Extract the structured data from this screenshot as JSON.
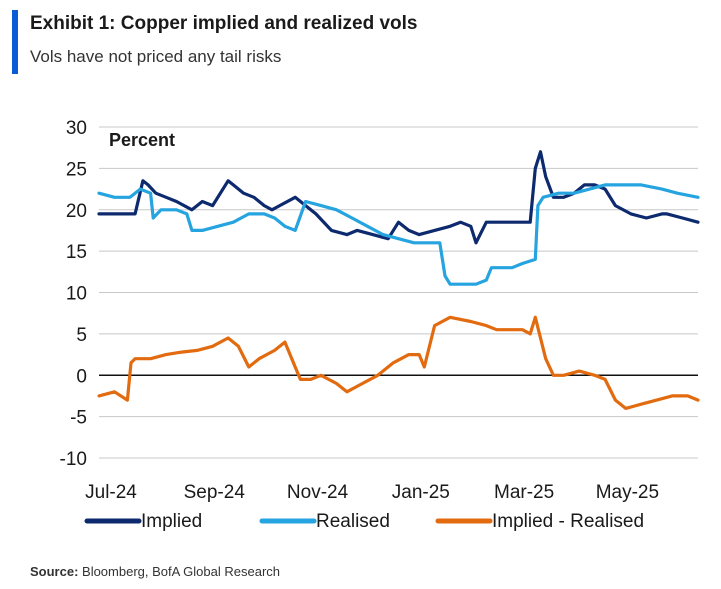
{
  "header": {
    "title": "Exhibit 1: Copper implied and realized vols",
    "subtitle": "Vols have not priced any tail risks",
    "accent_color": "#0a5bd8"
  },
  "source": {
    "label": "Source:",
    "text": " Bloomberg, BofA Global Research"
  },
  "chart_data": {
    "type": "line",
    "title": "Exhibit 1: Copper implied and realized vols",
    "ylabel": "Percent",
    "xlabel": "",
    "ylim": [
      -10,
      30
    ],
    "yticks": [
      -10,
      -5,
      0,
      5,
      10,
      15,
      20,
      25,
      30
    ],
    "ytick_labels": [
      "-10",
      "-5",
      "0",
      "5",
      "10",
      "15",
      "20",
      "25",
      "30"
    ],
    "xlim": [
      0,
      11.6
    ],
    "xticks": [
      {
        "pos": 0,
        "label": "Jul-24"
      },
      {
        "pos": 2,
        "label": "Sep-24"
      },
      {
        "pos": 4,
        "label": "Nov-24"
      },
      {
        "pos": 6,
        "label": "Jan-25"
      },
      {
        "pos": 8,
        "label": "Mar-25"
      },
      {
        "pos": 10,
        "label": "May-25"
      }
    ],
    "grid": true,
    "legend_position": "bottom",
    "series": [
      {
        "name": "Implied",
        "color": "#0d2a6e",
        "x": [
          0,
          0.4,
          0.7,
          0.85,
          0.95,
          1.1,
          1.3,
          1.5,
          1.8,
          2.0,
          2.2,
          2.5,
          2.6,
          2.8,
          3.0,
          3.2,
          3.35,
          3.5,
          3.8,
          4.0,
          4.2,
          4.5,
          4.8,
          5.0,
          5.3,
          5.6,
          5.8,
          6.0,
          6.2,
          6.5,
          6.8,
          7.0,
          7.2,
          7.3,
          7.5,
          7.8,
          8.0,
          8.2,
          8.35,
          8.45,
          8.55,
          8.65,
          8.8,
          9.0,
          9.2,
          9.4,
          9.6,
          9.8,
          10.0,
          10.3,
          10.6,
          10.9,
          11.0,
          11.3,
          11.6
        ],
        "values": [
          19.5,
          19.5,
          19.5,
          23.5,
          23.0,
          22.0,
          21.5,
          21.0,
          20.0,
          21.0,
          20.5,
          23.5,
          23.0,
          22.0,
          21.5,
          20.5,
          20.0,
          20.5,
          21.5,
          20.5,
          19.5,
          17.5,
          17.0,
          17.5,
          17.0,
          16.5,
          18.5,
          17.5,
          17.0,
          17.5,
          18.0,
          18.5,
          18.0,
          16.0,
          18.5,
          18.5,
          18.5,
          18.5,
          18.5,
          25.0,
          27.0,
          24.0,
          21.5,
          21.5,
          22.0,
          23.0,
          23.0,
          22.5,
          20.5,
          19.5,
          19.0,
          19.5,
          19.5,
          19.0,
          18.5
        ]
      },
      {
        "name": "Realised",
        "color": "#26a4e0",
        "x": [
          0,
          0.3,
          0.6,
          0.8,
          1.0,
          1.05,
          1.2,
          1.5,
          1.7,
          1.8,
          2.0,
          2.3,
          2.6,
          2.9,
          3.2,
          3.4,
          3.6,
          3.8,
          4.0,
          4.3,
          4.6,
          4.9,
          5.2,
          5.5,
          5.8,
          6.1,
          6.4,
          6.6,
          6.7,
          6.8,
          7.0,
          7.3,
          7.5,
          7.6,
          7.8,
          8.0,
          8.2,
          8.45,
          8.5,
          8.6,
          8.9,
          9.2,
          9.5,
          9.8,
          10.1,
          10.5,
          10.9,
          11.2,
          11.6
        ],
        "values": [
          22.0,
          21.5,
          21.5,
          22.5,
          22.0,
          19.0,
          20.0,
          20.0,
          19.5,
          17.5,
          17.5,
          18.0,
          18.5,
          19.5,
          19.5,
          19.0,
          18.0,
          17.5,
          21.0,
          20.5,
          20.0,
          19.0,
          18.0,
          17.0,
          16.5,
          16.0,
          16.0,
          16.0,
          12.0,
          11.0,
          11.0,
          11.0,
          11.5,
          13.0,
          13.0,
          13.0,
          13.5,
          14.0,
          20.5,
          21.5,
          22.0,
          22.0,
          22.5,
          23.0,
          23.0,
          23.0,
          22.5,
          22.0,
          21.5
        ]
      },
      {
        "name": "Implied - Realised",
        "color": "#e26b10",
        "x": [
          0,
          0.3,
          0.55,
          0.62,
          0.7,
          1.0,
          1.3,
          1.6,
          1.9,
          2.2,
          2.5,
          2.7,
          2.9,
          3.1,
          3.4,
          3.6,
          3.8,
          3.9,
          4.1,
          4.3,
          4.6,
          4.8,
          5.1,
          5.4,
          5.7,
          6.0,
          6.2,
          6.3,
          6.5,
          6.8,
          7.2,
          7.5,
          7.7,
          8.0,
          8.2,
          8.35,
          8.45,
          8.55,
          8.65,
          8.8,
          9.0,
          9.3,
          9.6,
          9.8,
          10.0,
          10.2,
          10.5,
          10.8,
          11.1,
          11.4,
          11.6
        ],
        "values": [
          -2.5,
          -2.0,
          -3.0,
          1.5,
          2.0,
          2.0,
          2.5,
          2.8,
          3.0,
          3.5,
          4.5,
          3.5,
          1.0,
          2.0,
          3.0,
          4.0,
          1.0,
          -0.5,
          -0.5,
          0.0,
          -1.0,
          -2.0,
          -1.0,
          0.0,
          1.5,
          2.5,
          2.5,
          1.0,
          6.0,
          7.0,
          6.5,
          6.0,
          5.5,
          5.5,
          5.5,
          5.0,
          7.0,
          4.5,
          2.0,
          0.0,
          0.0,
          0.5,
          0.0,
          -0.5,
          -3.0,
          -4.0,
          -3.5,
          -3.0,
          -2.5,
          -2.5,
          -3.0
        ]
      }
    ]
  }
}
